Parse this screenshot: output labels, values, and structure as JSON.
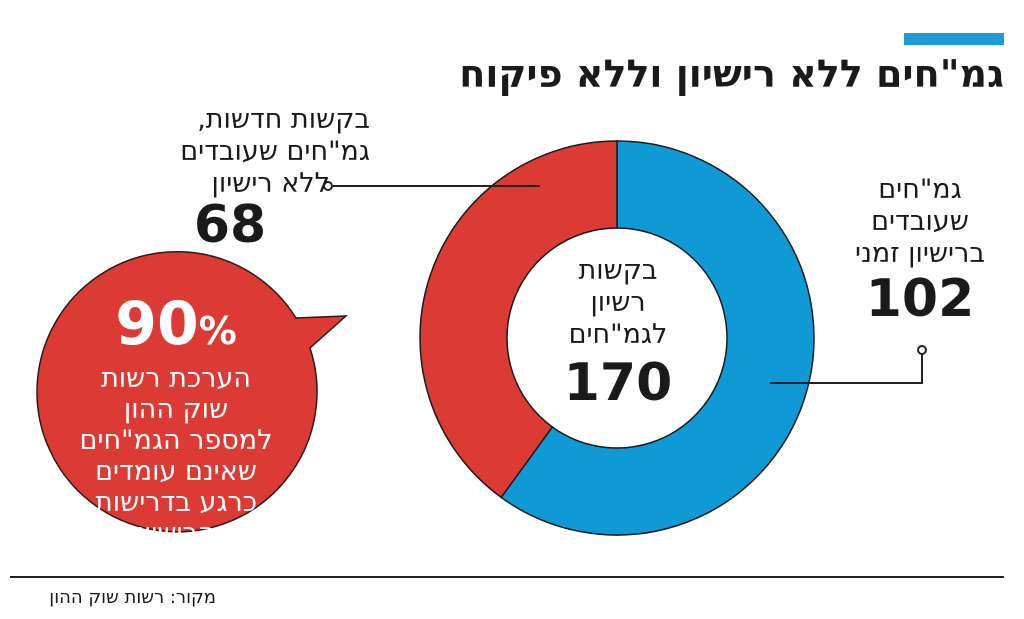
{
  "title": "גמ\"חים ללא רישיון וללא פיקוח",
  "colors": {
    "accent": "#1e9bd7",
    "red": "#dc3a34",
    "blue": "#0f9ad6"
  },
  "chart_data": {
    "type": "pie",
    "variant": "donut",
    "center_label": "בקשות רשיון לגמ\"חים",
    "total": 170,
    "slices": [
      {
        "label": "גמ\"חים שעובדים ברישיון זמני",
        "value": 102,
        "color": "#0f9ad6"
      },
      {
        "label": "בקשות חדשות, גמ\"חים שעובדים ללא רישיון",
        "value": 68,
        "color": "#dc3a34"
      }
    ]
  },
  "labels": {
    "left_lines": [
      "בקשות חדשות,",
      "גמ\"חים שעובדים",
      "ללא רישיון"
    ],
    "left_value": "68",
    "right_lines": [
      "גמ\"חים",
      "שעובדים",
      "ברישיון זמני"
    ],
    "right_value": "102",
    "center_lines": [
      "בקשות",
      "רשיון",
      "לגמ\"חים"
    ],
    "center_value": "170"
  },
  "bubble": {
    "number": "90",
    "percent_sign": "%",
    "lines": [
      "הערכת רשות",
      "שוק ההון",
      "למספר הגמ\"חים",
      "שאינם עומדים",
      "כרגע בדרישות",
      "הרישיון"
    ]
  },
  "source": "מקור: רשות שוק ההון"
}
